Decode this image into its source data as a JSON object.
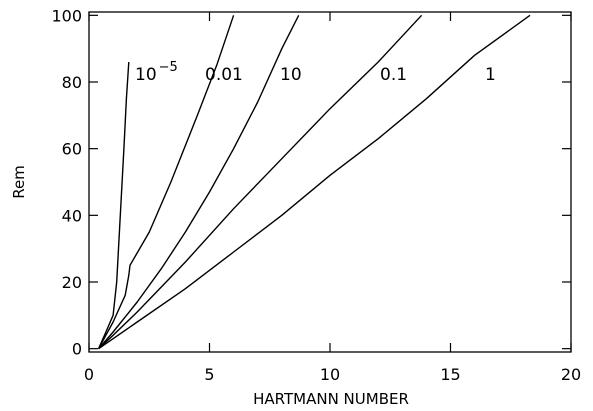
{
  "chart_data": {
    "type": "line",
    "title": "",
    "xlabel": "HARTMANN NUMBER",
    "ylabel": "Rem",
    "xlim": [
      0,
      20
    ],
    "ylim": [
      -1,
      101
    ],
    "grid": false,
    "legend": "none",
    "x_ticks": [
      0,
      5,
      10,
      15,
      20
    ],
    "x_tick_labels": [
      "0",
      "5",
      "10",
      "15",
      "20"
    ],
    "y_ticks": [
      0,
      20,
      40,
      60,
      80,
      100
    ],
    "y_tick_labels": [
      "0",
      "20",
      "40",
      "60",
      "80",
      "100"
    ],
    "series": [
      {
        "label_base": "10",
        "label_exp": "−5",
        "points": [
          [
            0.4,
            0
          ],
          [
            0.7,
            5
          ],
          [
            1.0,
            10
          ],
          [
            1.15,
            20
          ],
          [
            1.3,
            40
          ],
          [
            1.45,
            60
          ],
          [
            1.55,
            75
          ],
          [
            1.65,
            86
          ]
        ]
      },
      {
        "label": "0.01",
        "points": [
          [
            0.4,
            0
          ],
          [
            1.0,
            8
          ],
          [
            1.5,
            16
          ],
          [
            1.65,
            22
          ],
          [
            1.7,
            25
          ],
          [
            2.5,
            35
          ],
          [
            3.4,
            50
          ],
          [
            4.5,
            70
          ],
          [
            5.3,
            85
          ],
          [
            6.0,
            100
          ]
        ]
      },
      {
        "label": "10",
        "points": [
          [
            0.4,
            0
          ],
          [
            1.0,
            5
          ],
          [
            2.0,
            14
          ],
          [
            3.0,
            24
          ],
          [
            4.0,
            35
          ],
          [
            5.0,
            47
          ],
          [
            6.0,
            60
          ],
          [
            7.0,
            74
          ],
          [
            8.0,
            90
          ],
          [
            8.7,
            100
          ]
        ]
      },
      {
        "label": "0.1",
        "points": [
          [
            0.4,
            0
          ],
          [
            1.0,
            4
          ],
          [
            2.0,
            11
          ],
          [
            4.0,
            26
          ],
          [
            6.0,
            42
          ],
          [
            8.0,
            57
          ],
          [
            10.0,
            72
          ],
          [
            12.0,
            86
          ],
          [
            13.8,
            100
          ]
        ]
      },
      {
        "label": "1",
        "points": [
          [
            0.4,
            0
          ],
          [
            1.0,
            3
          ],
          [
            2.0,
            8
          ],
          [
            4.0,
            18
          ],
          [
            6.0,
            29
          ],
          [
            8.0,
            40
          ],
          [
            10.0,
            52
          ],
          [
            12.0,
            63
          ],
          [
            14.0,
            75
          ],
          [
            16.0,
            88
          ],
          [
            18.3,
            100
          ]
        ]
      }
    ]
  }
}
